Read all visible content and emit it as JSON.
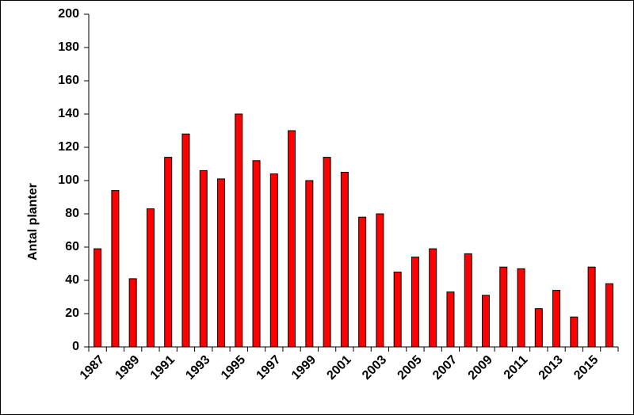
{
  "chart_data": {
    "type": "bar",
    "y_label": "Antal planter",
    "categories": [
      "1987",
      null,
      "1989",
      null,
      "1991",
      null,
      "1993",
      null,
      "1995",
      null,
      "1997",
      null,
      "1999",
      null,
      "2001",
      null,
      "2003",
      null,
      "2005",
      null,
      "2007",
      null,
      "2009",
      null,
      "2011",
      null,
      "2013",
      null,
      "2015",
      null
    ],
    "values": [
      59,
      94,
      41,
      83,
      114,
      128,
      106,
      101,
      140,
      112,
      104,
      130,
      100,
      114,
      105,
      78,
      80,
      45,
      54,
      59,
      33,
      56,
      31,
      48,
      47,
      23,
      34,
      18,
      48,
      38
    ],
    "color": "#ff0000",
    "ylim": [
      0,
      200
    ],
    "yticks": [
      0,
      20,
      40,
      60,
      80,
      100,
      120,
      140,
      160,
      180,
      200
    ],
    "grid": false
  }
}
